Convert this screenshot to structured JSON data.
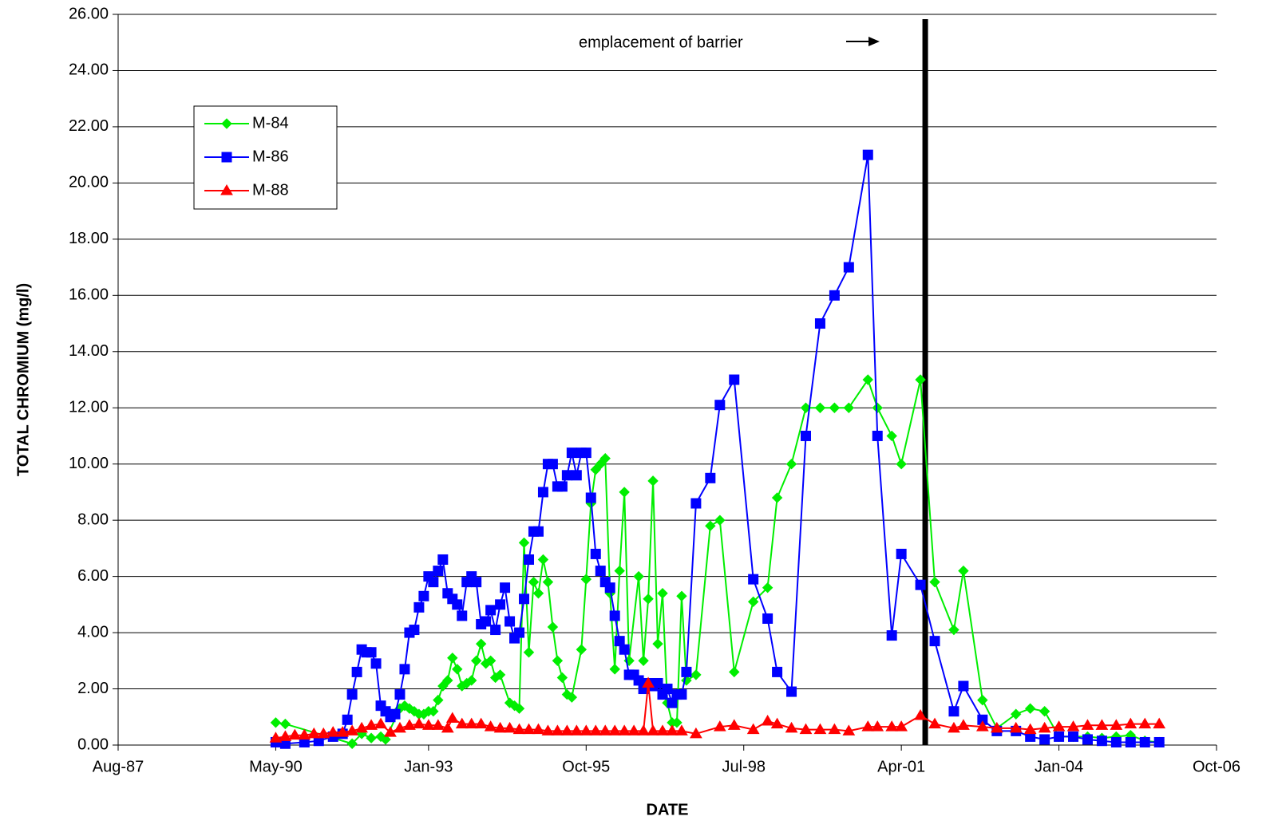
{
  "chart_data": {
    "type": "line",
    "y_label": "TOTAL CHROMIUM (mg/l)",
    "x_label": "DATE",
    "xlim": [
      "1987-08",
      "2006-10"
    ],
    "xticks": [
      {
        "value": "1987-08",
        "label": "Aug-87"
      },
      {
        "value": "1990-05",
        "label": "May-90"
      },
      {
        "value": "1993-01",
        "label": "Jan-93"
      },
      {
        "value": "1995-10",
        "label": "Oct-95"
      },
      {
        "value": "1998-07",
        "label": "Jul-98"
      },
      {
        "value": "2001-04",
        "label": "Apr-01"
      },
      {
        "value": "2004-01",
        "label": "Jan-04"
      },
      {
        "value": "2006-10",
        "label": "Oct-06"
      }
    ],
    "ylim": [
      0,
      26
    ],
    "yticks": [
      {
        "value": 0,
        "label": "0.00"
      },
      {
        "value": 2,
        "label": "2.00"
      },
      {
        "value": 4,
        "label": "4.00"
      },
      {
        "value": 6,
        "label": "6.00"
      },
      {
        "value": 8,
        "label": "8.00"
      },
      {
        "value": 10,
        "label": "10.00"
      },
      {
        "value": 12,
        "label": "12.00"
      },
      {
        "value": 14,
        "label": "14.00"
      },
      {
        "value": 16,
        "label": "16.00"
      },
      {
        "value": 18,
        "label": "18.00"
      },
      {
        "value": 20,
        "label": "20.00"
      },
      {
        "value": 22,
        "label": "22.00"
      },
      {
        "value": 24,
        "label": "24.00"
      },
      {
        "value": 26,
        "label": "26.00"
      }
    ],
    "grid": true,
    "legend": "upper left",
    "annotation": {
      "text": "emplacement of barrier",
      "x": "2001-09"
    },
    "series": [
      {
        "name": "M-84",
        "color": "#00ee00",
        "marker": "diamond",
        "x": [
          "1990-05",
          "1990-07",
          "1991-09",
          "1991-11",
          "1992-01",
          "1992-03",
          "1992-04",
          "1992-07",
          "1992-08",
          "1992-09",
          "1992-10",
          "1992-11",
          "1992-12",
          "1993-01",
          "1993-02",
          "1993-03",
          "1993-04",
          "1993-05",
          "1993-06",
          "1993-07",
          "1993-08",
          "1993-09",
          "1993-10",
          "1993-11",
          "1993-12",
          "1994-01",
          "1994-02",
          "1994-03",
          "1994-04",
          "1994-06",
          "1994-07",
          "1994-08",
          "1994-09",
          "1994-10",
          "1994-11",
          "1994-12",
          "1995-01",
          "1995-02",
          "1995-03",
          "1995-04",
          "1995-05",
          "1995-06",
          "1995-07",
          "1995-09",
          "1995-10",
          "1995-11",
          "1995-12",
          "1996-01",
          "1996-02",
          "1996-03",
          "1996-04",
          "1996-05",
          "1996-06",
          "1996-07",
          "1996-09",
          "1996-10",
          "1996-11",
          "1996-12",
          "1997-01",
          "1997-02",
          "1997-03",
          "1997-04",
          "1997-05",
          "1997-06",
          "1997-07",
          "1997-09",
          "1997-12",
          "1998-02",
          "1998-05",
          "1998-09",
          "1998-12",
          "1999-02",
          "1999-05",
          "1999-08",
          "1999-11",
          "2000-02",
          "2000-05",
          "2000-09",
          "2000-11",
          "2001-02",
          "2001-04",
          "2001-08",
          "2001-11",
          "2002-03",
          "2002-05",
          "2002-09",
          "2002-12",
          "2003-04",
          "2003-07",
          "2003-10",
          "2004-01",
          "2004-04",
          "2004-07",
          "2004-10",
          "2005-01",
          "2005-04",
          "2005-07",
          "2005-10"
        ],
        "values": [
          0.8,
          0.75,
          0.05,
          0.4,
          0.25,
          0.3,
          0.2,
          1.3,
          1.4,
          1.3,
          1.2,
          1.1,
          1.1,
          1.2,
          1.2,
          1.6,
          2.1,
          2.3,
          3.1,
          2.7,
          2.1,
          2.2,
          2.3,
          3.0,
          3.6,
          2.9,
          3.0,
          2.4,
          2.5,
          1.5,
          1.4,
          1.3,
          7.2,
          3.3,
          5.8,
          5.4,
          6.6,
          5.8,
          4.2,
          3.0,
          2.4,
          1.8,
          1.7,
          3.4,
          5.9,
          8.6,
          9.8,
          10.0,
          10.2,
          5.4,
          2.7,
          6.2,
          9.0,
          3.0,
          6.0,
          3.0,
          5.2,
          9.4,
          3.6,
          5.4,
          1.5,
          0.8,
          0.8,
          5.3,
          2.3,
          2.5,
          7.8,
          8.0,
          2.6,
          5.1,
          5.6,
          8.8,
          10.0,
          12.0,
          12.0,
          12.0,
          12.0,
          13.0,
          12.0,
          11.0,
          10.0,
          13.0,
          5.8,
          4.1,
          6.2,
          1.6,
          0.6,
          1.1,
          1.3,
          1.2,
          0.3,
          0.3,
          0.3,
          0.25,
          0.3,
          0.35,
          0.15,
          0.1
        ]
      },
      {
        "name": "M-86",
        "color": "#0000ff",
        "marker": "square",
        "x": [
          "1990-05",
          "1990-07",
          "1990-11",
          "1991-02",
          "1991-05",
          "1991-07",
          "1991-08",
          "1991-09",
          "1991-10",
          "1991-11",
          "1991-12",
          "1992-01",
          "1992-02",
          "1992-03",
          "1992-04",
          "1992-05",
          "1992-06",
          "1992-07",
          "1992-08",
          "1992-09",
          "1992-10",
          "1992-11",
          "1992-12",
          "1993-01",
          "1993-02",
          "1993-03",
          "1993-04",
          "1993-05",
          "1993-06",
          "1993-07",
          "1993-08",
          "1993-09",
          "1993-10",
          "1993-11",
          "1993-12",
          "1994-01",
          "1994-02",
          "1994-03",
          "1994-04",
          "1994-05",
          "1994-06",
          "1994-07",
          "1994-08",
          "1994-09",
          "1994-10",
          "1994-11",
          "1994-12",
          "1995-01",
          "1995-02",
          "1995-03",
          "1995-04",
          "1995-05",
          "1995-06",
          "1995-07",
          "1995-08",
          "1995-09",
          "1995-10",
          "1995-11",
          "1995-12",
          "1996-01",
          "1996-02",
          "1996-03",
          "1996-04",
          "1996-05",
          "1996-06",
          "1996-07",
          "1996-08",
          "1996-09",
          "1996-10",
          "1996-11",
          "1996-12",
          "1997-01",
          "1997-02",
          "1997-03",
          "1997-04",
          "1997-05",
          "1997-06",
          "1997-07",
          "1997-09",
          "1997-12",
          "1998-02",
          "1998-05",
          "1998-09",
          "1998-12",
          "1999-02",
          "1999-05",
          "1999-08",
          "1999-11",
          "2000-02",
          "2000-05",
          "2000-09",
          "2000-11",
          "2001-02",
          "2001-04",
          "2001-08",
          "2001-11",
          "2002-03",
          "2002-05",
          "2002-09",
          "2002-12",
          "2003-04",
          "2003-07",
          "2003-10",
          "2004-01",
          "2004-04",
          "2004-07",
          "2004-10",
          "2005-01",
          "2005-04",
          "2005-07",
          "2005-10"
        ],
        "values": [
          0.1,
          0.05,
          0.1,
          0.15,
          0.3,
          0.4,
          0.9,
          1.8,
          2.6,
          3.4,
          3.3,
          3.3,
          2.9,
          1.4,
          1.2,
          1.0,
          1.1,
          1.8,
          2.7,
          4.0,
          4.1,
          4.9,
          5.3,
          6.0,
          5.8,
          6.2,
          6.6,
          5.4,
          5.2,
          5.0,
          4.6,
          5.8,
          6.0,
          5.8,
          4.3,
          4.4,
          4.8,
          4.1,
          5.0,
          5.6,
          4.4,
          3.8,
          4.0,
          5.2,
          6.6,
          7.6,
          7.6,
          9.0,
          10.0,
          10.0,
          9.2,
          9.2,
          9.6,
          10.4,
          9.6,
          10.4,
          10.4,
          8.8,
          6.8,
          6.2,
          5.8,
          5.6,
          4.6,
          3.7,
          3.4,
          2.5,
          2.5,
          2.3,
          2.0,
          2.2,
          2.1,
          2.2,
          1.8,
          2.0,
          1.5,
          1.8,
          1.8,
          2.6,
          8.6,
          9.5,
          12.1,
          13.0,
          5.9,
          4.5,
          2.6,
          1.9,
          11.0,
          15.0,
          16.0,
          17.0,
          21.0,
          11.0,
          3.9,
          6.8,
          5.7,
          3.7,
          1.2,
          2.1,
          0.9,
          0.5,
          0.5,
          0.3,
          0.2,
          0.3,
          0.3,
          0.2,
          0.15,
          0.1,
          0.1,
          0.1,
          0.1
        ]
      },
      {
        "name": "M-88",
        "color": "#ff0000",
        "marker": "triangle",
        "x": [
          "1990-05",
          "1990-07",
          "1990-09",
          "1990-11",
          "1991-01",
          "1991-03",
          "1991-05",
          "1991-07",
          "1991-09",
          "1991-11",
          "1992-01",
          "1992-03",
          "1992-05",
          "1992-07",
          "1992-09",
          "1992-11",
          "1993-01",
          "1993-03",
          "1993-05",
          "1993-06",
          "1993-08",
          "1993-10",
          "1993-12",
          "1994-02",
          "1994-04",
          "1994-06",
          "1994-08",
          "1994-10",
          "1994-12",
          "1995-02",
          "1995-04",
          "1995-06",
          "1995-08",
          "1995-10",
          "1995-12",
          "1996-02",
          "1996-04",
          "1996-06",
          "1996-08",
          "1996-10",
          "1996-11",
          "1996-12",
          "1997-02",
          "1997-04",
          "1997-06",
          "1997-09",
          "1998-02",
          "1998-05",
          "1998-09",
          "1998-12",
          "1999-02",
          "1999-05",
          "1999-08",
          "1999-11",
          "2000-02",
          "2000-05",
          "2000-09",
          "2000-11",
          "2001-02",
          "2001-04",
          "2001-08",
          "2001-11",
          "2002-03",
          "2002-05",
          "2002-09",
          "2002-12",
          "2003-04",
          "2003-07",
          "2003-10",
          "2004-01",
          "2004-04",
          "2004-07",
          "2004-10",
          "2005-01",
          "2005-04",
          "2005-07",
          "2005-10"
        ],
        "values": [
          0.25,
          0.3,
          0.35,
          0.35,
          0.4,
          0.4,
          0.45,
          0.45,
          0.5,
          0.6,
          0.7,
          0.75,
          0.45,
          0.6,
          0.7,
          0.75,
          0.7,
          0.7,
          0.6,
          0.95,
          0.75,
          0.75,
          0.75,
          0.65,
          0.6,
          0.6,
          0.55,
          0.55,
          0.55,
          0.5,
          0.5,
          0.5,
          0.5,
          0.5,
          0.5,
          0.5,
          0.5,
          0.5,
          0.5,
          0.5,
          2.2,
          0.5,
          0.5,
          0.5,
          0.5,
          0.4,
          0.65,
          0.7,
          0.55,
          0.85,
          0.75,
          0.6,
          0.55,
          0.55,
          0.55,
          0.5,
          0.65,
          0.65,
          0.65,
          0.65,
          1.05,
          0.75,
          0.6,
          0.7,
          0.65,
          0.6,
          0.6,
          0.55,
          0.6,
          0.65,
          0.65,
          0.7,
          0.7,
          0.7,
          0.75,
          0.75,
          0.75
        ]
      }
    ]
  }
}
